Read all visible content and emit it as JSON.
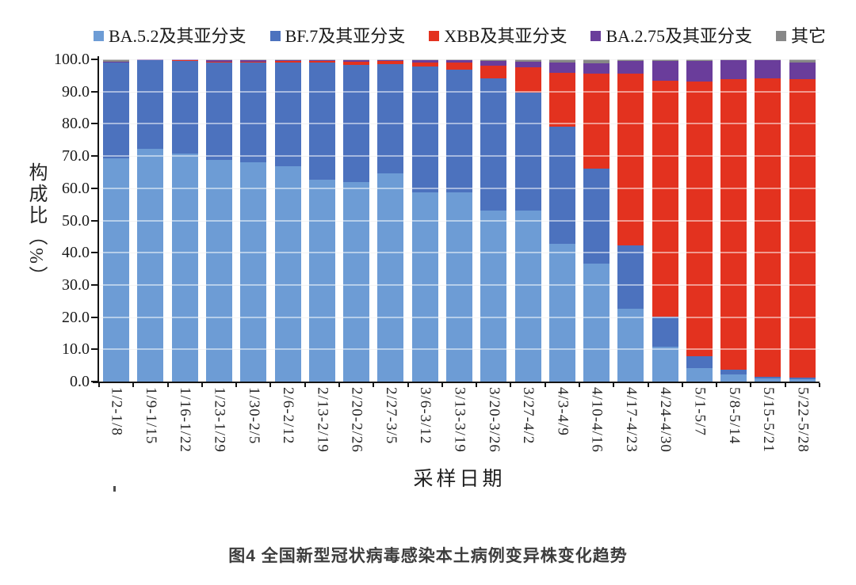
{
  "caption": "图4 全国新型冠状病毒感染本土病例变异株变化趋势",
  "chart_data": {
    "type": "bar",
    "stacked": true,
    "unit": "percent",
    "title": "图4 全国新型冠状病毒感染本土病例变异株变化趋势",
    "xlabel": "采样日期",
    "ylabel": "构成比（%）",
    "ylim": [
      0,
      100
    ],
    "ytick_step": 10,
    "yticks": [
      "100.0",
      "90.0",
      "80.0",
      "70.0",
      "60.0",
      "50.0",
      "40.0",
      "30.0",
      "20.0",
      "10.0",
      "0.0"
    ],
    "grid": true,
    "legend_position": "top",
    "categories": [
      "1/2-1/8",
      "1/9-1/15",
      "1/16-1/22",
      "1/23-1/29",
      "1/30-2/5",
      "2/6-2/12",
      "2/13-2/19",
      "2/20-2/26",
      "2/27-3/5",
      "3/6-3/12",
      "3/13-3/19",
      "3/20-3/26",
      "3/27-4/2",
      "4/3-4/9",
      "4/10-4/16",
      "4/17-4/23",
      "4/24-4/30",
      "5/1-5/7",
      "5/8-5/14",
      "5/15-5/21",
      "5/22-5/28"
    ],
    "series": [
      {
        "name": "BA.5.2及其亚分支",
        "color": "#6D9CD5",
        "values": [
          69.3,
          72.2,
          70.7,
          68.8,
          68.0,
          66.9,
          62.7,
          61.9,
          64.6,
          58.7,
          58.7,
          53.1,
          53.1,
          42.8,
          36.6,
          22.6,
          10.8,
          4.2,
          2.2,
          1.0,
          0.7
        ]
      },
      {
        "name": "BF.7及其亚分支",
        "color": "#4C72BE",
        "values": [
          29.6,
          27.5,
          28.9,
          30.2,
          31.0,
          32.0,
          36.2,
          36.4,
          34.0,
          39.1,
          38.1,
          41.0,
          36.6,
          36.3,
          29.5,
          19.7,
          9.3,
          3.7,
          1.5,
          0.5,
          0.5
        ]
      },
      {
        "name": "XBB及其亚分支",
        "color": "#E3321F",
        "values": [
          0.1,
          0.1,
          0.1,
          0.2,
          0.2,
          0.6,
          0.6,
          1.0,
          0.9,
          1.2,
          2.2,
          4.0,
          7.8,
          16.8,
          29.5,
          53.3,
          73.3,
          85.2,
          90.2,
          92.6,
          92.7
        ]
      },
      {
        "name": "BA.2.75及其亚分支",
        "color": "#6A3D9B",
        "values": [
          0.2,
          0.1,
          0.2,
          0.6,
          0.6,
          0.3,
          0.3,
          0.5,
          0.3,
          0.8,
          0.8,
          1.5,
          1.7,
          3.1,
          3.1,
          3.9,
          6.1,
          6.4,
          5.8,
          5.6,
          5.1
        ]
      },
      {
        "name": "其它",
        "color": "#878787",
        "values": [
          0.8,
          0.1,
          0.1,
          0.2,
          0.2,
          0.2,
          0.2,
          0.2,
          0.2,
          0.2,
          0.2,
          0.4,
          0.8,
          1.0,
          1.3,
          0.5,
          0.5,
          0.5,
          0.3,
          0.3,
          1.0
        ]
      }
    ]
  },
  "yaxis": {
    "title": "构成比（%）"
  },
  "xaxis": {
    "title": "采样日期"
  }
}
